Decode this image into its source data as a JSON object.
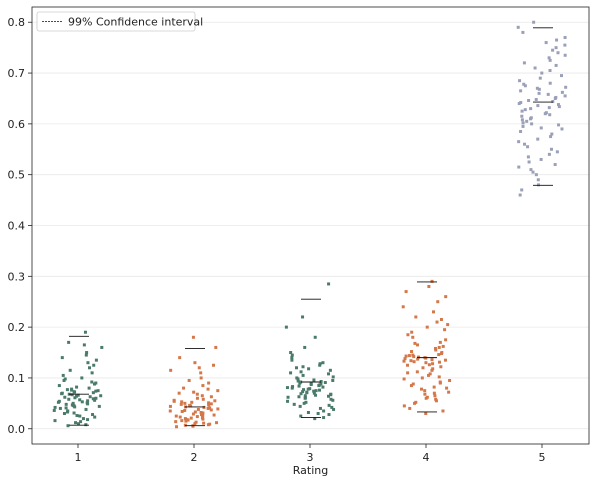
{
  "chart_data": {
    "type": "scatter",
    "title": "",
    "xlabel": "Rating",
    "ylabel": "",
    "categories": [
      "1",
      "2",
      "3",
      "4",
      "5"
    ],
    "ylim": [
      -0.03,
      0.83
    ],
    "yticks": [
      "0.0",
      "0.1",
      "0.2",
      "0.3",
      "0.4",
      "0.5",
      "0.6",
      "0.7",
      "0.8"
    ],
    "grid": "horizontal",
    "legend": {
      "label": "99% Confidence interval",
      "placement": "top-left"
    },
    "colors": [
      "#4a7a6a",
      "#d4784a",
      "#4a7a6a",
      "#d4784a",
      "#9aa0b8"
    ],
    "series": [
      {
        "category": "1",
        "mean": 0.068,
        "ci_low": 0.007,
        "ci_high": 0.182,
        "values": [
          0.19,
          0.17,
          0.165,
          0.16,
          0.15,
          0.145,
          0.14,
          0.135,
          0.13,
          0.125,
          0.12,
          0.115,
          0.11,
          0.105,
          0.1,
          0.098,
          0.095,
          0.092,
          0.09,
          0.088,
          0.085,
          0.082,
          0.08,
          0.078,
          0.077,
          0.076,
          0.075,
          0.074,
          0.073,
          0.072,
          0.071,
          0.07,
          0.069,
          0.068,
          0.067,
          0.066,
          0.065,
          0.064,
          0.063,
          0.062,
          0.061,
          0.06,
          0.059,
          0.058,
          0.057,
          0.056,
          0.055,
          0.054,
          0.053,
          0.052,
          0.051,
          0.05,
          0.049,
          0.048,
          0.047,
          0.046,
          0.045,
          0.044,
          0.043,
          0.042,
          0.041,
          0.04,
          0.038,
          0.036,
          0.035,
          0.033,
          0.031,
          0.03,
          0.028,
          0.026,
          0.025,
          0.023,
          0.02,
          0.018,
          0.016,
          0.014,
          0.012,
          0.01,
          0.008,
          0.006
        ]
      },
      {
        "category": "2",
        "mean": 0.043,
        "ci_low": 0.006,
        "ci_high": 0.158,
        "values": [
          0.18,
          0.16,
          0.14,
          0.13,
          0.125,
          0.12,
          0.115,
          0.11,
          0.1,
          0.095,
          0.09,
          0.085,
          0.08,
          0.078,
          0.075,
          0.072,
          0.07,
          0.068,
          0.065,
          0.063,
          0.06,
          0.058,
          0.056,
          0.055,
          0.054,
          0.053,
          0.052,
          0.051,
          0.05,
          0.049,
          0.048,
          0.047,
          0.046,
          0.045,
          0.044,
          0.043,
          0.042,
          0.041,
          0.04,
          0.039,
          0.038,
          0.037,
          0.036,
          0.035,
          0.034,
          0.033,
          0.032,
          0.031,
          0.03,
          0.029,
          0.028,
          0.027,
          0.026,
          0.025,
          0.024,
          0.023,
          0.022,
          0.021,
          0.02,
          0.019,
          0.018,
          0.017,
          0.016,
          0.015,
          0.014,
          0.013,
          0.012,
          0.011,
          0.01,
          0.009,
          0.008,
          0.007,
          0.006,
          0.005,
          0.004
        ]
      },
      {
        "category": "3",
        "mean": 0.092,
        "ci_low": 0.022,
        "ci_high": 0.255,
        "values": [
          0.285,
          0.22,
          0.2,
          0.18,
          0.16,
          0.15,
          0.145,
          0.14,
          0.135,
          0.13,
          0.128,
          0.125,
          0.122,
          0.12,
          0.118,
          0.115,
          0.112,
          0.11,
          0.108,
          0.105,
          0.102,
          0.1,
          0.098,
          0.096,
          0.095,
          0.094,
          0.093,
          0.092,
          0.091,
          0.09,
          0.089,
          0.088,
          0.087,
          0.086,
          0.085,
          0.084,
          0.083,
          0.082,
          0.081,
          0.08,
          0.079,
          0.078,
          0.077,
          0.076,
          0.075,
          0.074,
          0.073,
          0.072,
          0.071,
          0.07,
          0.069,
          0.068,
          0.067,
          0.066,
          0.065,
          0.064,
          0.063,
          0.062,
          0.061,
          0.06,
          0.058,
          0.056,
          0.054,
          0.052,
          0.05,
          0.048,
          0.046,
          0.044,
          0.042,
          0.04,
          0.038,
          0.035,
          0.032,
          0.03,
          0.028,
          0.025,
          0.022,
          0.02
        ]
      },
      {
        "category": "4",
        "mean": 0.14,
        "ci_low": 0.033,
        "ci_high": 0.289,
        "values": [
          0.29,
          0.28,
          0.27,
          0.26,
          0.25,
          0.24,
          0.23,
          0.22,
          0.215,
          0.21,
          0.205,
          0.2,
          0.195,
          0.19,
          0.185,
          0.18,
          0.175,
          0.17,
          0.168,
          0.165,
          0.162,
          0.16,
          0.158,
          0.155,
          0.152,
          0.15,
          0.148,
          0.146,
          0.145,
          0.144,
          0.143,
          0.142,
          0.141,
          0.14,
          0.139,
          0.138,
          0.137,
          0.136,
          0.135,
          0.134,
          0.133,
          0.132,
          0.131,
          0.13,
          0.128,
          0.126,
          0.125,
          0.122,
          0.12,
          0.118,
          0.115,
          0.112,
          0.11,
          0.108,
          0.105,
          0.102,
          0.1,
          0.098,
          0.095,
          0.092,
          0.09,
          0.088,
          0.085,
          0.082,
          0.08,
          0.078,
          0.075,
          0.072,
          0.07,
          0.068,
          0.065,
          0.062,
          0.06,
          0.058,
          0.055,
          0.052,
          0.05,
          0.045,
          0.04,
          0.035,
          0.03
        ]
      },
      {
        "category": "5",
        "mean": 0.643,
        "ci_low": 0.479,
        "ci_high": 0.789,
        "values": [
          0.8,
          0.79,
          0.78,
          0.77,
          0.765,
          0.76,
          0.755,
          0.75,
          0.745,
          0.74,
          0.735,
          0.73,
          0.725,
          0.72,
          0.715,
          0.71,
          0.705,
          0.7,
          0.695,
          0.69,
          0.685,
          0.68,
          0.678,
          0.675,
          0.672,
          0.67,
          0.668,
          0.665,
          0.662,
          0.66,
          0.658,
          0.655,
          0.652,
          0.65,
          0.648,
          0.646,
          0.644,
          0.642,
          0.64,
          0.638,
          0.636,
          0.634,
          0.632,
          0.63,
          0.628,
          0.625,
          0.622,
          0.62,
          0.618,
          0.615,
          0.612,
          0.61,
          0.608,
          0.605,
          0.602,
          0.6,
          0.598,
          0.595,
          0.592,
          0.59,
          0.585,
          0.58,
          0.575,
          0.57,
          0.565,
          0.56,
          0.555,
          0.55,
          0.545,
          0.54,
          0.535,
          0.53,
          0.525,
          0.52,
          0.515,
          0.51,
          0.505,
          0.5,
          0.49,
          0.48,
          0.47,
          0.46
        ]
      }
    ]
  }
}
